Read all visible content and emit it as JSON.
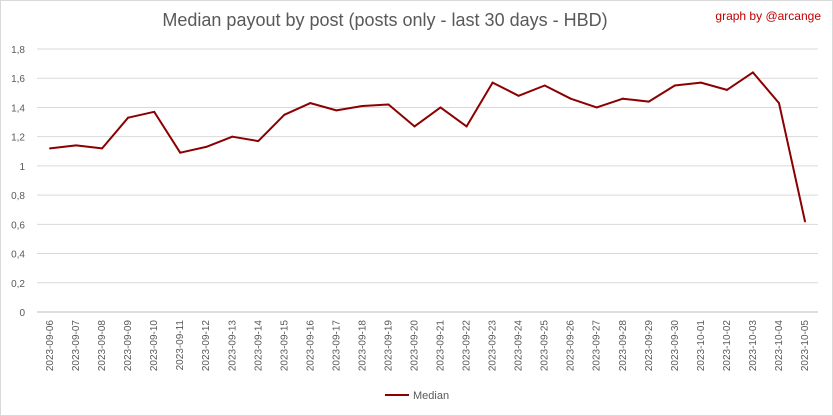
{
  "chart_data": {
    "type": "line",
    "title": "Median payout by post (posts only - last 30 days - HBD)",
    "credit": "graph by @arcange",
    "categories": [
      "2023-09-06",
      "2023-09-07",
      "2023-09-08",
      "2023-09-09",
      "2023-09-10",
      "2023-09-11",
      "2023-09-12",
      "2023-09-13",
      "2023-09-14",
      "2023-09-15",
      "2023-09-16",
      "2023-09-17",
      "2023-09-18",
      "2023-09-19",
      "2023-09-20",
      "2023-09-21",
      "2023-09-22",
      "2023-09-23",
      "2023-09-24",
      "2023-09-25",
      "2023-09-26",
      "2023-09-27",
      "2023-09-28",
      "2023-09-29",
      "2023-09-30",
      "2023-10-01",
      "2023-10-02",
      "2023-10-03",
      "2023-10-04",
      "2023-10-05"
    ],
    "series": [
      {
        "name": "Median",
        "color": "#8b0000",
        "values": [
          1.12,
          1.14,
          1.12,
          1.33,
          1.37,
          1.09,
          1.13,
          1.2,
          1.17,
          1.35,
          1.43,
          1.38,
          1.41,
          1.42,
          1.27,
          1.4,
          1.27,
          1.57,
          1.48,
          1.55,
          1.46,
          1.4,
          1.46,
          1.44,
          1.55,
          1.57,
          1.52,
          1.64,
          1.43,
          0.62
        ]
      }
    ],
    "y_ticks": [
      "0",
      "0,2",
      "0,4",
      "0,6",
      "0,8",
      "1",
      "1,2",
      "1,4",
      "1,6",
      "1,8"
    ],
    "ylim": [
      0,
      1.8
    ],
    "grid": true,
    "legend_position": "bottom"
  }
}
